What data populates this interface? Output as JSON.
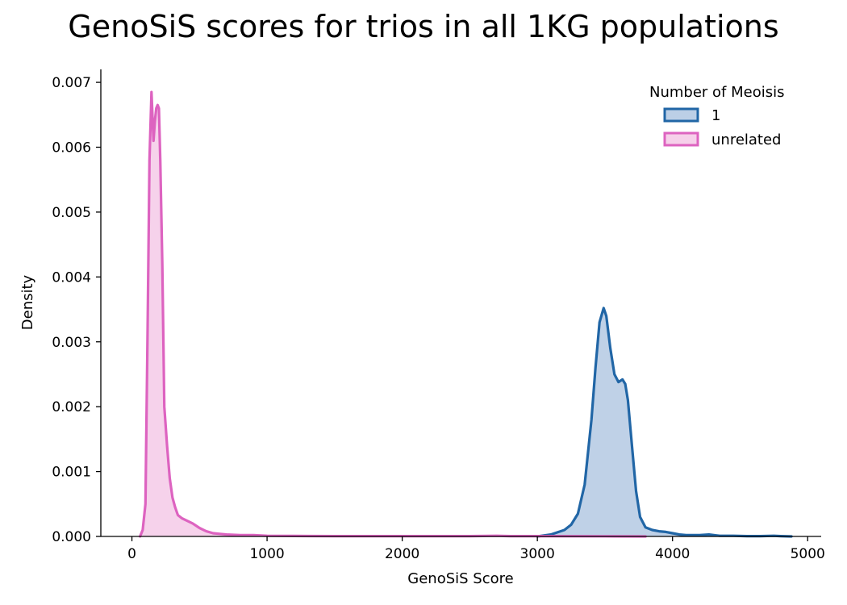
{
  "chart_data": {
    "type": "area",
    "title": "GenoSiS scores for trios in all 1KG populations",
    "xlabel": "GenoSiS Score",
    "ylabel": "Density",
    "xlim": [
      -230,
      5100
    ],
    "ylim": [
      0,
      0.0072
    ],
    "xticks": [
      "0",
      "1000",
      "2000",
      "3000",
      "4000",
      "5000"
    ],
    "yticks": [
      "0.000",
      "0.001",
      "0.002",
      "0.003",
      "0.004",
      "0.005",
      "0.006",
      "0.007"
    ],
    "grid": false,
    "legend": {
      "title": "Number of Meoisis",
      "placement": "top-right"
    },
    "series": [
      {
        "name": "1",
        "color": "#2166a6",
        "fill": "#bccfe6",
        "x": [
          3000,
          3100,
          3200,
          3250,
          3300,
          3350,
          3400,
          3430,
          3460,
          3490,
          3510,
          3540,
          3570,
          3600,
          3630,
          3650,
          3670,
          3700,
          3730,
          3760,
          3800,
          3850,
          3900,
          3950,
          4000,
          4050,
          4100,
          4150,
          4200,
          4270,
          4350,
          4450,
          4550,
          4650,
          4750,
          4800,
          4880
        ],
        "y": [
          0.0,
          3e-05,
          0.0001,
          0.00018,
          0.00035,
          0.0008,
          0.0018,
          0.0026,
          0.0033,
          0.00352,
          0.0034,
          0.0029,
          0.0025,
          0.00238,
          0.00242,
          0.00235,
          0.0021,
          0.0014,
          0.0007,
          0.0003,
          0.00014,
          0.0001,
          8e-05,
          7e-05,
          5e-05,
          3e-05,
          2e-05,
          2e-05,
          2e-05,
          3e-05,
          1e-05,
          1e-05,
          5e-06,
          5e-06,
          1e-05,
          5e-06,
          0.0
        ]
      },
      {
        "name": "unrelated",
        "color": "#dd63c0",
        "fill": "#f6d0ea",
        "x": [
          60,
          80,
          100,
          115,
          130,
          145,
          160,
          170,
          180,
          190,
          200,
          210,
          225,
          240,
          260,
          280,
          300,
          320,
          340,
          370,
          400,
          450,
          500,
          550,
          600,
          650,
          700,
          800,
          900,
          1000,
          1200,
          1500,
          2000,
          2500,
          2700,
          2800,
          3000,
          3500,
          3800
        ],
        "y": [
          0.0,
          0.0001,
          0.0005,
          0.003,
          0.0058,
          0.00685,
          0.0061,
          0.0064,
          0.0066,
          0.00665,
          0.0066,
          0.0058,
          0.0042,
          0.002,
          0.0014,
          0.0009,
          0.0006,
          0.00045,
          0.00033,
          0.00028,
          0.00025,
          0.0002,
          0.00013,
          8e-05,
          5e-05,
          4e-05,
          3e-05,
          2e-05,
          2e-05,
          1e-05,
          8e-06,
          5e-06,
          5e-06,
          5e-06,
          1e-05,
          5e-06,
          5e-06,
          2e-06,
          0.0
        ]
      }
    ]
  }
}
